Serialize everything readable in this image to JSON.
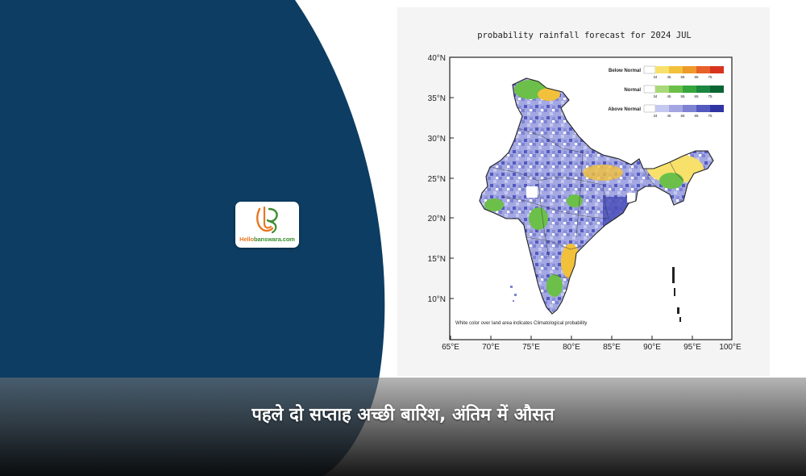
{
  "logo": {
    "hello": "Hello",
    "rest": "banswara.com",
    "colors": {
      "orange": "#e87722",
      "green": "#3a8d2e"
    }
  },
  "headline": "पहले दो सप्ताह अच्छी बारिश, अंतिम में औसत",
  "map": {
    "title": "probability rainfall forecast for 2024 JUL",
    "lat_labels": [
      "40°N",
      "35°N",
      "30°N",
      "25°N",
      "20°N",
      "15°N",
      "10°N"
    ],
    "lon_labels": [
      "65°E",
      "70°E",
      "75°E",
      "80°E",
      "85°E",
      "90°E",
      "95°E",
      "100°E"
    ],
    "note": "White color over land area indicates Climatological probability",
    "legend": [
      {
        "label": "Below Normal",
        "colors": [
          "#ffffff",
          "#f7e16a",
          "#f2c13b",
          "#ee9a2a",
          "#e8602a",
          "#d8331f"
        ],
        "ticks": [
          "34",
          "45",
          "55",
          "65",
          "75"
        ]
      },
      {
        "label": "Normal",
        "colors": [
          "#ffffff",
          "#a8d879",
          "#6cc04a",
          "#36a53c",
          "#1b8740",
          "#0b6432"
        ],
        "ticks": [
          "34",
          "45",
          "55",
          "65",
          "75"
        ]
      },
      {
        "label": "Above Normal",
        "colors": [
          "#ffffff",
          "#c5c8ee",
          "#a3a6e2",
          "#7d82d2",
          "#5459bf",
          "#2f35a3"
        ],
        "ticks": [
          "34",
          "45",
          "55",
          "65",
          "75"
        ]
      }
    ]
  },
  "colors": {
    "navy": "#0d3d63",
    "land_fill": "#9da3e0"
  }
}
